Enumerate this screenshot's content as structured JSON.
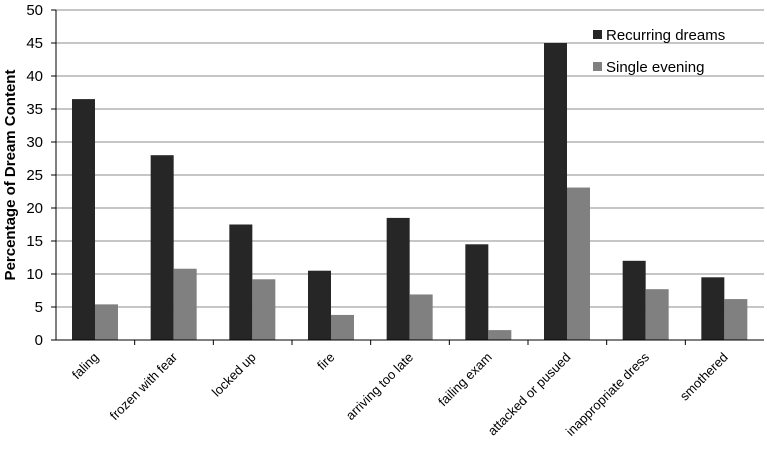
{
  "chart_data": {
    "type": "bar",
    "categories": [
      "faling",
      "frozen with fear",
      "locked up",
      "fire",
      "arriving too late",
      "failing exam",
      "attacked or pusued",
      "inappropriate dress",
      "smothered"
    ],
    "series": [
      {
        "name": "Recurring dreams",
        "values": [
          36.5,
          28,
          17.5,
          10.5,
          18.5,
          14.5,
          45,
          12,
          9.5
        ],
        "color": "#262626"
      },
      {
        "name": "Single evening",
        "values": [
          5.4,
          10.8,
          9.2,
          3.8,
          6.9,
          1.5,
          23.1,
          7.7,
          6.2
        ],
        "color": "#808080"
      }
    ],
    "ylabel": "Percentage of Dream Content",
    "ylim": [
      0,
      50
    ],
    "yticks": [
      0,
      5,
      10,
      15,
      20,
      25,
      30,
      35,
      40,
      45,
      50
    ],
    "grid": true,
    "legend_position": "top-right"
  }
}
